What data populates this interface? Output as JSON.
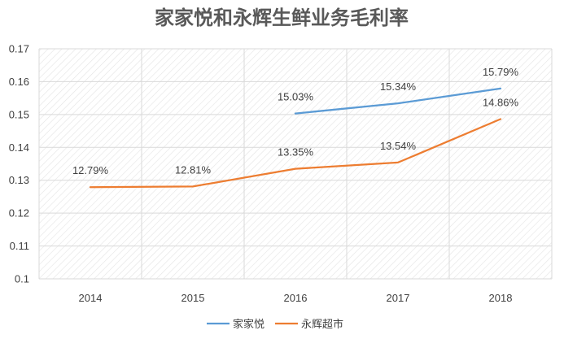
{
  "chart_data": {
    "type": "line",
    "title": "家家悦和永辉生鲜业务毛利率",
    "categories": [
      "2014",
      "2015",
      "2016",
      "2017",
      "2018"
    ],
    "ylim": [
      0.1,
      0.17
    ],
    "yticks": [
      "0.1",
      "0.11",
      "0.12",
      "0.13",
      "0.14",
      "0.15",
      "0.16",
      "0.17"
    ],
    "grid": true,
    "legend_position": "bottom",
    "series": [
      {
        "name": "家家悦",
        "color": "#5b9bd5",
        "values": [
          null,
          null,
          0.1503,
          0.1534,
          0.1579
        ],
        "labels": [
          null,
          null,
          "15.03%",
          "15.34%",
          "15.79%"
        ]
      },
      {
        "name": "永辉超市",
        "color": "#ed7d31",
        "values": [
          0.1279,
          0.1281,
          0.1335,
          0.1354,
          0.1486
        ],
        "labels": [
          "12.79%",
          "12.81%",
          "13.35%",
          "13.54%",
          "14.86%"
        ]
      }
    ]
  }
}
